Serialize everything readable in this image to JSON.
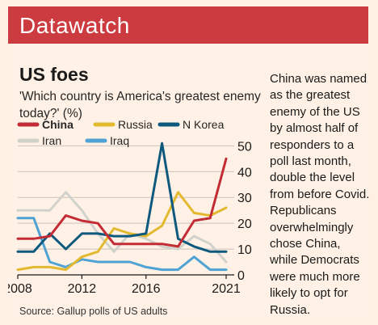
{
  "banner": {
    "title": "Datawatch"
  },
  "caption": "China was named as the greatest enemy of the US by almost half of responders to a poll last month, double the level from before Covid. Republicans overwhelmingly chose China, while Democrats were much more likely to opt for Russia.",
  "source": "Source: Gallup polls of US adults",
  "colors": {
    "banner": "#cc3b40",
    "background": "#fff1e5",
    "China": "#c32c35",
    "Russia": "#e3b92f",
    "N Korea": "#0e5a7f",
    "Iran": "#d2d2cc",
    "Iraq": "#4fa3d4"
  },
  "chart_data": {
    "type": "line",
    "title": "US foes",
    "subtitle": "'Which country is America's greatest enemy today?' (%)",
    "x": [
      2008,
      2009,
      2010,
      2011,
      2012,
      2013,
      2014,
      2015,
      2016,
      2017,
      2018,
      2019,
      2020,
      2021
    ],
    "x_ticks": [
      2008,
      2012,
      2016,
      2021
    ],
    "y_ticks": [
      0,
      10,
      20,
      30,
      40,
      50
    ],
    "ylim": [
      0,
      52
    ],
    "y_axis_side": "right",
    "grid": true,
    "legend": "top",
    "series": [
      {
        "name": "China",
        "values": [
          14,
          14,
          15,
          23,
          21,
          20,
          12,
          12,
          12,
          12,
          11,
          21,
          22,
          45
        ]
      },
      {
        "name": "Russia",
        "values": [
          2,
          3,
          3,
          2,
          7,
          9,
          18,
          16,
          15,
          19,
          32,
          24,
          23,
          26
        ]
      },
      {
        "name": "N Korea",
        "values": [
          9,
          9,
          16,
          10,
          16,
          16,
          15,
          15,
          16,
          51,
          14,
          11,
          9,
          9
        ]
      },
      {
        "name": "Iran",
        "values": [
          25,
          25,
          25,
          32,
          25,
          16,
          9,
          16,
          14,
          11,
          10,
          15,
          12,
          5
        ]
      },
      {
        "name": "Iraq",
        "values": [
          22,
          22,
          5,
          3,
          6,
          5,
          5,
          5,
          3,
          2,
          2,
          7,
          2,
          2
        ]
      }
    ]
  }
}
